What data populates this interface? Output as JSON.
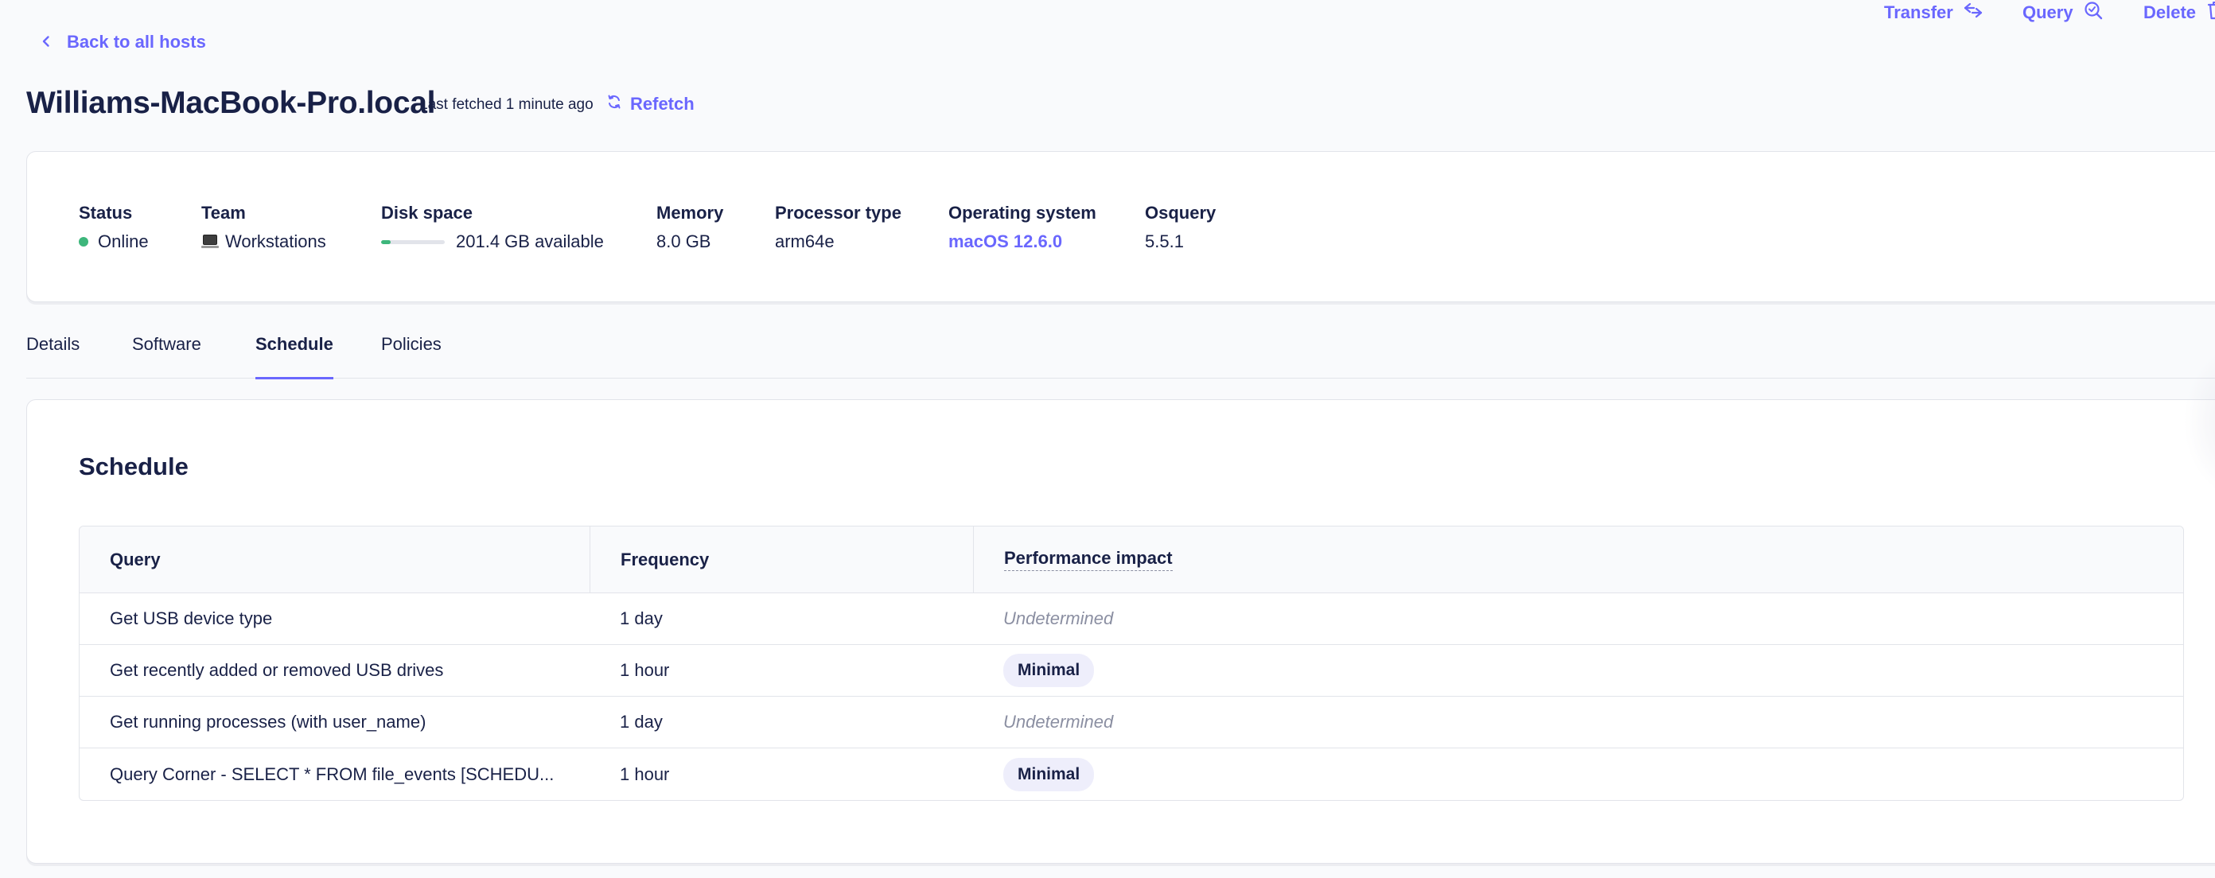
{
  "back_link": {
    "label": "Back to all hosts"
  },
  "header": {
    "host_name": "Williams-MacBook-Pro.local",
    "last_fetched": "Last fetched 1 minute ago",
    "refetch_label": "Refetch",
    "actions": {
      "transfer": "Transfer",
      "query": "Query",
      "delete": "Delete"
    }
  },
  "summary": {
    "status": {
      "label": "Status",
      "value": "Online",
      "color": "#3db67b"
    },
    "team": {
      "label": "Team",
      "value": "Workstations",
      "icon": "laptop-icon"
    },
    "disk_space": {
      "label": "Disk space",
      "value": "201.4 GB available",
      "used_fraction": 0.15
    },
    "memory": {
      "label": "Memory",
      "value": "8.0 GB"
    },
    "processor_type": {
      "label": "Processor type",
      "value": "arm64e"
    },
    "operating_system": {
      "label": "Operating system",
      "value": "macOS 12.6.0"
    },
    "osquery": {
      "label": "Osquery",
      "value": "5.5.1"
    }
  },
  "tabs": [
    {
      "label": "Details",
      "active": false
    },
    {
      "label": "Software",
      "active": false
    },
    {
      "label": "Schedule",
      "active": true
    },
    {
      "label": "Policies",
      "active": false
    }
  ],
  "schedule": {
    "title": "Schedule",
    "columns": {
      "query": "Query",
      "frequency": "Frequency",
      "performance": "Performance impact"
    },
    "rows": [
      {
        "query": "Get USB device type",
        "frequency": "1 day",
        "performance": "Undetermined",
        "perf_type": "undetermined"
      },
      {
        "query": "Get recently added or removed USB drives",
        "frequency": "1 hour",
        "performance": "Minimal",
        "perf_type": "pill"
      },
      {
        "query": "Get running processes (with user_name)",
        "frequency": "1 day",
        "performance": "Undetermined",
        "perf_type": "undetermined"
      },
      {
        "query": "Query Corner - SELECT * FROM file_events [SCHEDU...",
        "frequency": "1 hour",
        "performance": "Minimal",
        "perf_type": "pill"
      }
    ]
  },
  "colors": {
    "accent": "#6a67fe",
    "text": "#192147",
    "muted": "#8b8fa2",
    "border": "#e2e4ea",
    "background": "#f9fafc"
  }
}
